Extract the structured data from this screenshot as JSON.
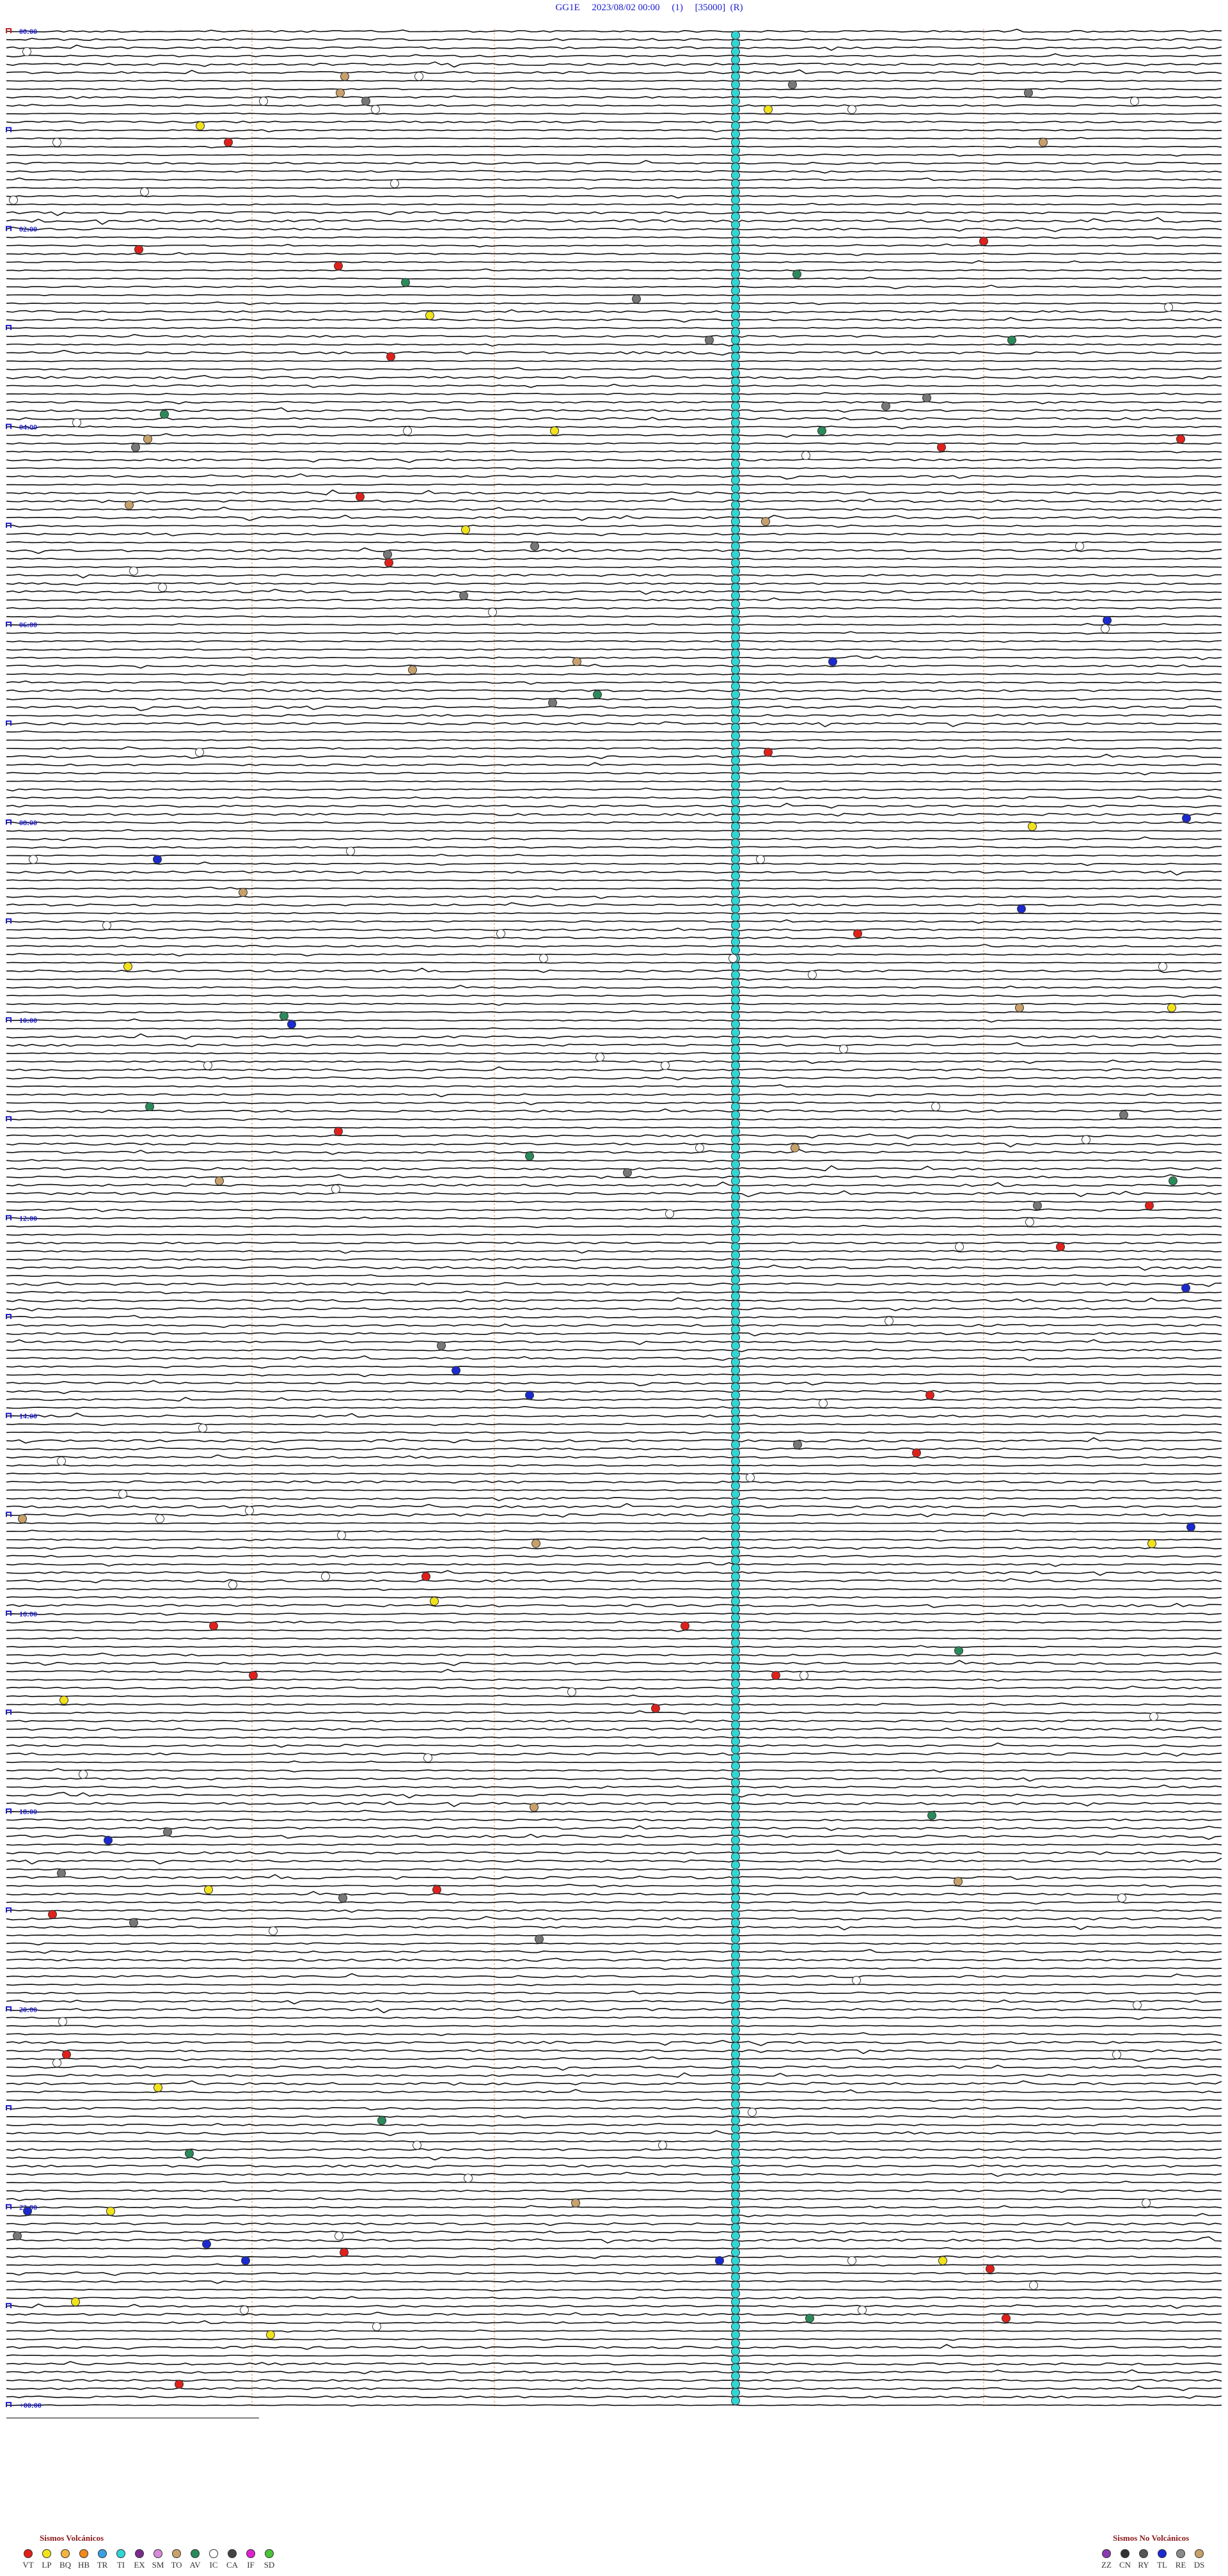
{
  "header": {
    "title": "GG1E     2023/08/02 00:00     (1)     [35000]  (R)"
  },
  "time_labels": [
    "00:00",
    "02:00",
    "04:00",
    "06:00",
    "08:00",
    "10:00",
    "12:00",
    "14:00",
    "16:00",
    "18:00",
    "20:00",
    "22:00",
    "+00:00"
  ],
  "legend": {
    "volcanic": {
      "title": "Sismos Volcánicos",
      "items": [
        {
          "code": "VT",
          "color": "#e0201b"
        },
        {
          "code": "LP",
          "color": "#f2e21a"
        },
        {
          "code": "BQ",
          "color": "#f5b342"
        },
        {
          "code": "HB",
          "color": "#f08a1c"
        },
        {
          "code": "TR",
          "color": "#3aa0e0"
        },
        {
          "code": "TI",
          "color": "#2fd6d6"
        },
        {
          "code": "EX",
          "color": "#7b2a8c"
        },
        {
          "code": "SM",
          "color": "#d98ad9"
        },
        {
          "code": "TO",
          "color": "#c8a06a"
        },
        {
          "code": "AV",
          "color": "#2a8a5a"
        },
        {
          "code": "IC",
          "color": "#ffffff"
        },
        {
          "code": "CA",
          "color": "#444444"
        },
        {
          "code": "IF",
          "color": "#e020d0"
        },
        {
          "code": "SD",
          "color": "#4cc23a"
        }
      ]
    },
    "non_volcanic": {
      "title": "Sismos No Volcánicos",
      "items": [
        {
          "code": "ZZ",
          "color": "#8a3ab0"
        },
        {
          "code": "CN",
          "color": "#333333"
        },
        {
          "code": "RY",
          "color": "#555555"
        },
        {
          "code": "TL",
          "color": "#1a2ad0"
        },
        {
          "code": "RE",
          "color": "#8a8a8a"
        },
        {
          "code": "DS",
          "color": "#c8a06a"
        }
      ]
    }
  }
}
